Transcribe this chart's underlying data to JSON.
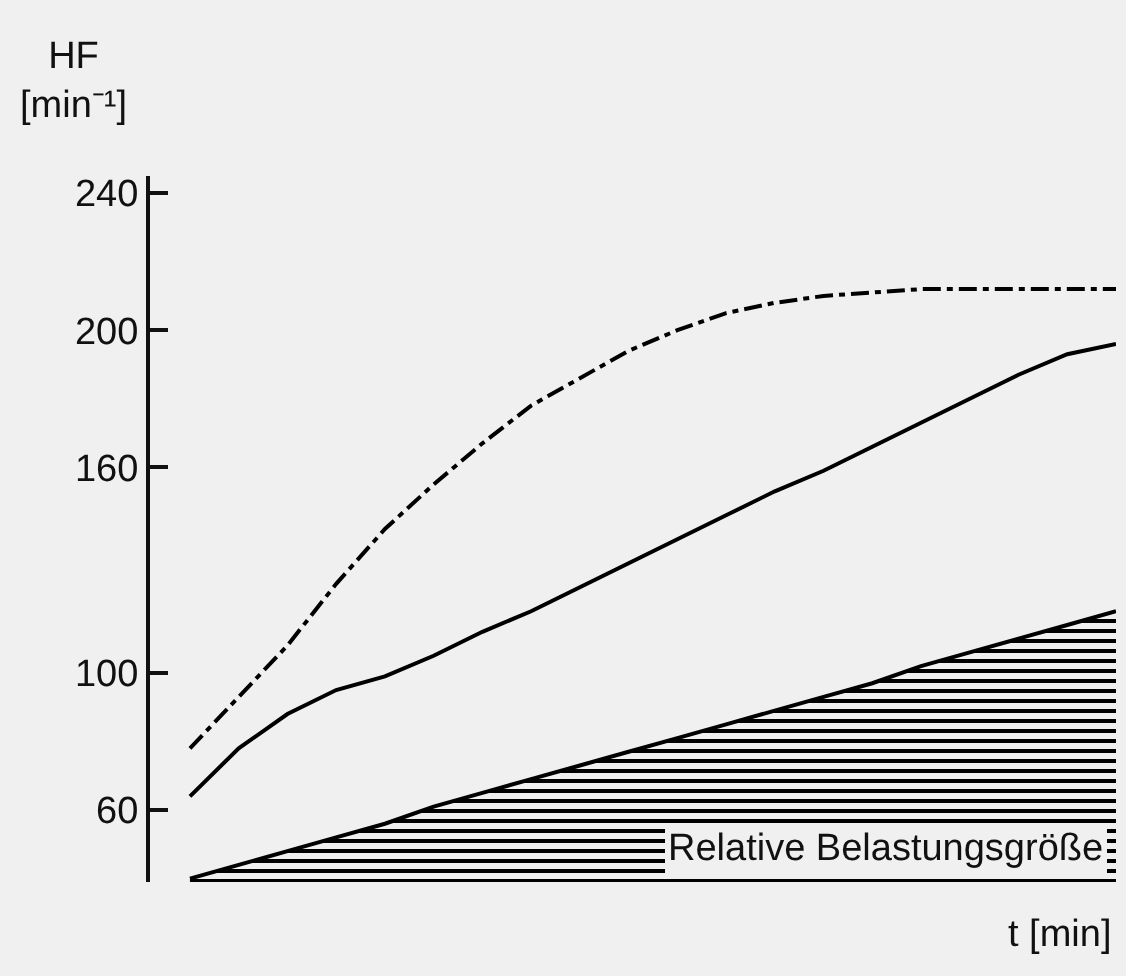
{
  "chart_data": {
    "type": "line",
    "ylabel": "HF [min⁻¹]",
    "xlabel": "t [min]",
    "categories": [
      null,
      null,
      null,
      null,
      null,
      null,
      null,
      null,
      null,
      null,
      null,
      null,
      null,
      null,
      null,
      null,
      null,
      null,
      null,
      null
    ],
    "ylim": [
      39,
      245
    ],
    "yticks": [
      60,
      100,
      160,
      200,
      240
    ],
    "tick_labels": "y",
    "grid": false,
    "legend": false,
    "marker": "none",
    "series": [
      {
        "color": "#000000",
        "line_style": "dashed",
        "values": [
          78,
          93,
          108,
          126,
          142,
          155,
          167,
          178,
          186,
          194,
          200,
          205,
          208,
          210,
          211,
          212,
          212,
          212,
          212,
          212
        ]
      },
      {
        "color": "#000000",
        "line_style": "solid",
        "values": [
          64,
          78,
          88,
          95,
          99,
          105,
          112,
          118,
          125,
          132,
          139,
          146,
          153,
          159,
          166,
          173,
          180,
          187,
          193,
          196
        ]
      },
      {
        "type": "area",
        "name": "Relative Belastungsgröße",
        "color": "#000000",
        "line_style": "solid",
        "values": [
          40,
          44,
          48,
          52,
          56,
          61,
          65,
          69,
          73,
          77,
          81,
          85,
          89,
          93,
          97,
          102,
          106,
          110,
          114,
          118
        ]
      }
    ]
  }
}
